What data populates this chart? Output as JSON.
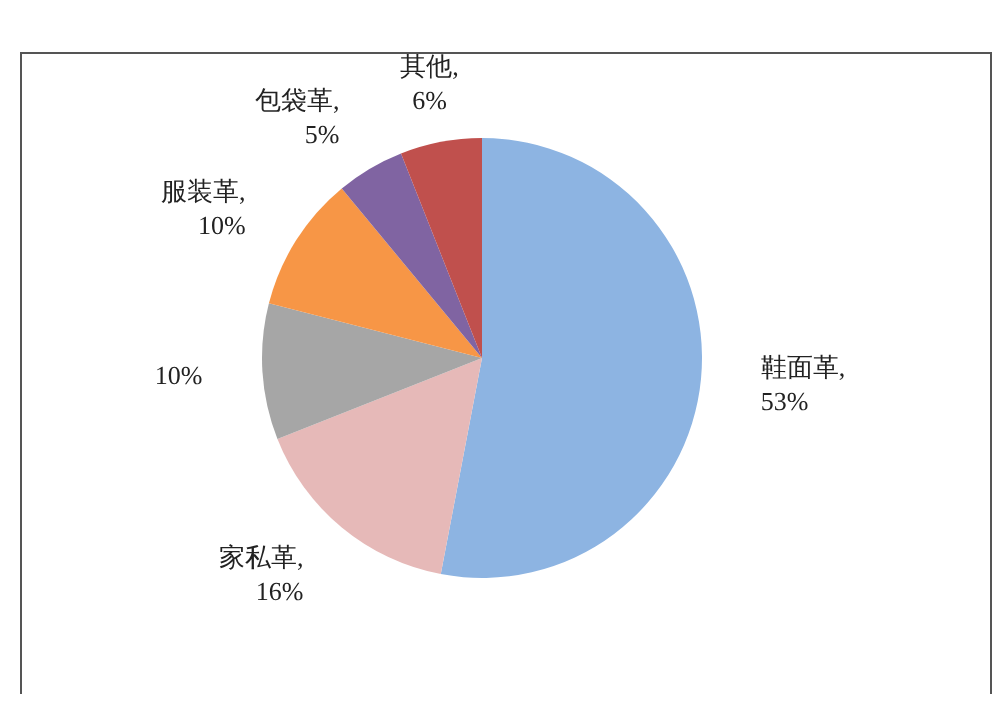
{
  "chart_data": {
    "type": "pie",
    "categories": [
      null,
      null,
      null,
      null,
      null,
      null
    ],
    "values": [
      53,
      16,
      10,
      10,
      5,
      6
    ],
    "colors": [
      "#8db4e2",
      "#e6b9b8",
      "#a6a6a6",
      "#f79646",
      "#8064a2",
      "#c0504d"
    ],
    "value_labels": [
      "鞋面革, 53%",
      "家私革, 16%",
      "10%",
      "服装革, 10%",
      "包袋革, 5%",
      "其他, 6%"
    ]
  }
}
